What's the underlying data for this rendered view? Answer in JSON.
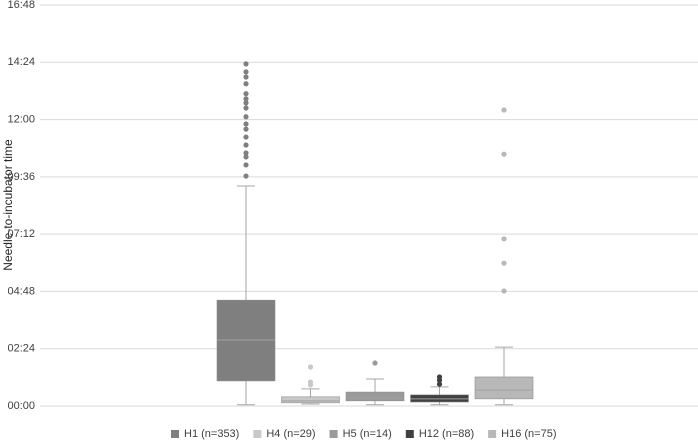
{
  "chart_data": {
    "type": "box",
    "y_label": "Needle-to-incubator time",
    "ylim": [
      0,
      1008
    ],
    "yticks": [
      {
        "value": 0,
        "label": "00:00"
      },
      {
        "value": 144,
        "label": "02:24"
      },
      {
        "value": 288,
        "label": "04:48"
      },
      {
        "value": 432,
        "label": "07:12"
      },
      {
        "value": 576,
        "label": "09:36"
      },
      {
        "value": 720,
        "label": "12:00"
      },
      {
        "value": 864,
        "label": "14:24"
      },
      {
        "value": 1008,
        "label": "16:48"
      }
    ],
    "grid": true,
    "legend": "bottom",
    "series": [
      {
        "name": "H1 (n=353)",
        "color": "#7f7f7f",
        "min": 3,
        "q1": 63,
        "median": 166,
        "q3": 266,
        "max": 553,
        "outliers": [
          578,
          606,
          626,
          636,
          656,
          676,
          696,
          709,
          727,
          749,
          762,
          772,
          785,
          810,
          827,
          840,
          860
        ]
      },
      {
        "name": "H4 (n=29)",
        "color": "#c8c8c8",
        "min": 5,
        "q1": 8,
        "median": 13,
        "q3": 23,
        "max": 43,
        "outliers": [
          53,
          60,
          98
        ]
      },
      {
        "name": "H5 (n=14)",
        "color": "#9a9a9a",
        "min": 3,
        "q1": 13,
        "median": 20,
        "q3": 35,
        "max": 68,
        "outliers": [
          108
        ]
      },
      {
        "name": "H12 (n=88)",
        "color": "#404040",
        "min": 3,
        "q1": 10,
        "median": 18,
        "q3": 28,
        "max": 48,
        "outliers": [
          55,
          65,
          73
        ]
      },
      {
        "name": "H16 (n=75)",
        "color": "#b8b8b8",
        "min": 3,
        "q1": 18,
        "median": 40,
        "q3": 73,
        "max": 148,
        "outliers": [
          289,
          359,
          420,
          633,
          744
        ]
      }
    ]
  }
}
